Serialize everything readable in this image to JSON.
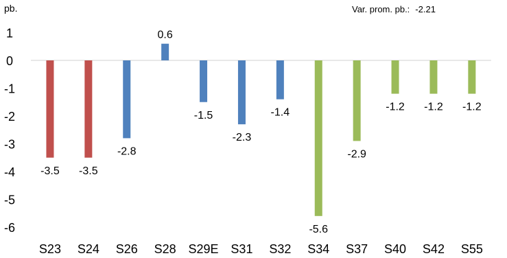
{
  "header": {
    "unit_label": "pb.",
    "avg_label": "Var. prom. pb.:",
    "avg_value": "-2.21"
  },
  "chart_data": {
    "type": "bar",
    "categories": [
      "S23",
      "S24",
      "S26",
      "S28",
      "S29E",
      "S31",
      "S32",
      "S34",
      "S37",
      "S40",
      "S42",
      "S55"
    ],
    "values": [
      -3.5,
      -3.5,
      -2.8,
      0.6,
      -1.5,
      -2.3,
      -1.4,
      -5.6,
      -2.9,
      -1.2,
      -1.2,
      -1.2
    ],
    "data_labels": [
      "-3.5",
      "-3.5",
      "-2.8",
      "0.6",
      "-1.5",
      "-2.3",
      "-1.4",
      "-5.6",
      "-2.9",
      "-1.2",
      "-1.2",
      "-1.2"
    ],
    "bar_colors": [
      "#c0504d",
      "#c0504d",
      "#4f81bd",
      "#4f81bd",
      "#4f81bd",
      "#4f81bd",
      "#4f81bd",
      "#9bbb59",
      "#9bbb59",
      "#9bbb59",
      "#9bbb59",
      "#9bbb59"
    ],
    "yticks": [
      1,
      0,
      -1,
      -2,
      -3,
      -4,
      -5,
      -6
    ],
    "ylim": [
      -6,
      1
    ],
    "grid": false,
    "title": "",
    "xlabel": "",
    "ylabel": "pb."
  }
}
